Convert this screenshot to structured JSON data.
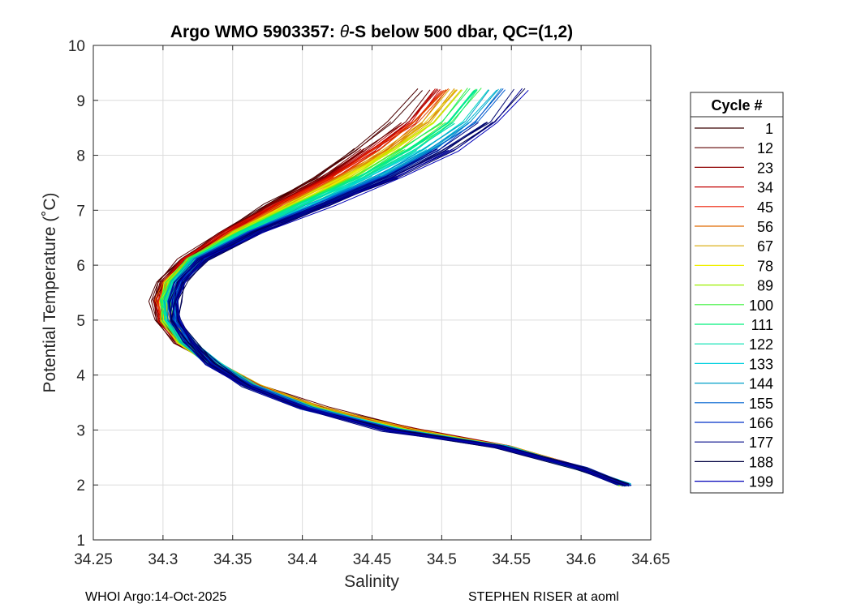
{
  "chart_data": {
    "type": "line",
    "title_prefix": "Argo WMO 5903357: ",
    "title_symbol": "θ",
    "title_suffix": "-S below 500 dbar,  QC=(1,2)",
    "xlabel": "Salinity",
    "ylabel": "Potential Temperature (˚C)",
    "xlim": [
      34.25,
      34.65
    ],
    "ylim": [
      1,
      10
    ],
    "xticks": [
      "34.25",
      "34.3",
      "34.35",
      "34.4",
      "34.45",
      "34.5",
      "34.55",
      "34.6",
      "34.65"
    ],
    "yticks": [
      "1",
      "2",
      "3",
      "4",
      "5",
      "6",
      "7",
      "8",
      "9",
      "10"
    ],
    "grid": true,
    "legend": {
      "title": "Cycle #",
      "placement": "right",
      "entries": [
        "1",
        "12",
        "23",
        "34",
        "45",
        "56",
        "67",
        "78",
        "89",
        "100",
        "111",
        "122",
        "133",
        "144",
        "155",
        "166",
        "177",
        "188",
        "199"
      ],
      "colors": [
        "#3b0000",
        "#5e0000",
        "#8f0000",
        "#c20000",
        "#ee1a00",
        "#e06a00",
        "#d8a800",
        "#f0f000",
        "#9cf000",
        "#3cf03c",
        "#00f07c",
        "#00e0b0",
        "#00d0e0",
        "#00a0c8",
        "#0064d0",
        "#0030c8",
        "#000888",
        "#000040",
        "#0000b8"
      ]
    },
    "profile_shape": {
      "temperature": [
        2.0,
        2.3,
        2.7,
        3.0,
        3.4,
        3.8,
        4.2,
        4.6,
        5.0,
        5.35,
        5.7,
        6.1,
        6.6,
        7.1,
        7.6,
        8.1,
        8.6,
        9.2
      ],
      "salinity_cycle1": [
        34.63,
        34.6,
        34.55,
        34.49,
        34.42,
        34.37,
        34.34,
        34.31,
        34.295,
        34.29,
        34.295,
        34.31,
        34.335,
        34.36,
        34.39,
        34.415,
        34.44,
        34.46
      ],
      "salinity_cycle199": [
        34.632,
        34.6,
        34.54,
        34.46,
        34.4,
        34.36,
        34.335,
        34.32,
        34.31,
        34.31,
        34.315,
        34.33,
        34.37,
        34.42,
        34.47,
        34.51,
        34.54,
        34.56
      ]
    }
  },
  "footer": {
    "left": "WHOI Argo:14-Oct-2025",
    "right": "STEPHEN RISER at aoml"
  }
}
